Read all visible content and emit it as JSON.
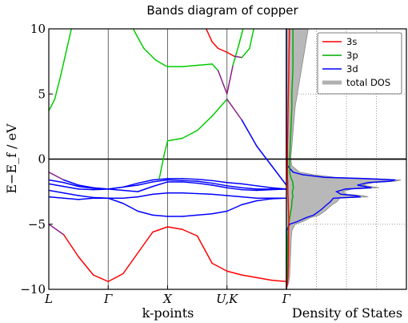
{
  "chart_data": [
    {
      "type": "line",
      "title": "Bands diagram of copper",
      "xlabel": "k-points",
      "ylabel": "E−E_f  /  eV",
      "ylim": [
        -10,
        10
      ],
      "kpoints": [
        "L",
        "Γ",
        "X",
        "U,K",
        "Γ"
      ],
      "kpoint_positions": [
        0,
        1,
        2,
        3,
        4
      ],
      "yticks": [
        -10,
        -5,
        0,
        5,
        10
      ],
      "ytick_labels": [
        "−10",
        "−5",
        "0",
        "5",
        "10"
      ],
      "fermi_level": 0,
      "grid": "vertical lines at high-symmetry k-points",
      "band_colors": {
        "s": "#ff0000",
        "p": "#00cc00",
        "d": "#0000ff"
      },
      "bands": [
        {
          "x": [
            0,
            0.25,
            0.5,
            0.75,
            1,
            1.25,
            1.5,
            1.75,
            2,
            2.25,
            2.5,
            2.75,
            3,
            3.25,
            3.5,
            3.75,
            4
          ],
          "y": [
            -5.0,
            -5.8,
            -7.5,
            -8.9,
            -9.4,
            -8.8,
            -7.2,
            -5.6,
            -5.2,
            -5.4,
            -5.9,
            -8.0,
            -8.6,
            -8.9,
            -9.1,
            -9.3,
            -9.4
          ],
          "char": [
            "p",
            "s",
            "s",
            "s",
            "s",
            "s",
            "s",
            "s",
            "s",
            "s",
            "s",
            "s",
            "s",
            "s",
            "s",
            "s",
            "s"
          ]
        },
        {
          "x": [
            0,
            0.25,
            0.5,
            0.75,
            1,
            1.25,
            1.5,
            1.75,
            2,
            2.25,
            2.5,
            2.75,
            3,
            3.25,
            3.5,
            3.75,
            4
          ],
          "y": [
            -2.9,
            -3.0,
            -3.1,
            -3.0,
            -3.0,
            -3.4,
            -4.0,
            -4.3,
            -4.4,
            -4.4,
            -4.3,
            -4.2,
            -4.0,
            -3.5,
            -3.2,
            -3.05,
            -3.0
          ],
          "char": [
            "d",
            "d",
            "d",
            "d",
            "d",
            "d",
            "d",
            "d",
            "d",
            "d",
            "d",
            "d",
            "d",
            "d",
            "d",
            "d",
            "d"
          ]
        },
        {
          "x": [
            0,
            0.25,
            0.5,
            0.75,
            1,
            1.25,
            1.5,
            1.75,
            2,
            2.25,
            2.5,
            2.75,
            3,
            3.25,
            3.5,
            3.75,
            4
          ],
          "y": [
            -2.4,
            -2.6,
            -2.8,
            -2.95,
            -3.0,
            -3.0,
            -2.9,
            -2.7,
            -2.6,
            -2.6,
            -2.65,
            -2.7,
            -2.8,
            -2.9,
            -3.0,
            -3.0,
            -3.0
          ],
          "char": [
            "d",
            "d",
            "d",
            "d",
            "d",
            "d",
            "d",
            "d",
            "d",
            "d",
            "d",
            "d",
            "d",
            "d",
            "d",
            "d",
            "d"
          ]
        },
        {
          "x": [
            0,
            0.25,
            0.5,
            0.75,
            1,
            1.25,
            1.5,
            1.75,
            2,
            2.25,
            2.5,
            2.75,
            3,
            3.25,
            3.5,
            3.75,
            4
          ],
          "y": [
            -1.9,
            -2.1,
            -2.3,
            -2.35,
            -2.3,
            -2.4,
            -2.5,
            -2.1,
            -1.75,
            -1.75,
            -1.85,
            -2.0,
            -2.2,
            -2.35,
            -2.4,
            -2.35,
            -2.3
          ],
          "char": [
            "d",
            "d",
            "d",
            "d",
            "d",
            "d",
            "d",
            "d",
            "d",
            "d",
            "d",
            "d",
            "d",
            "d",
            "d",
            "d",
            "d"
          ]
        },
        {
          "x": [
            0,
            0.25,
            0.5,
            0.75,
            1,
            1.25,
            1.5,
            1.75,
            2,
            2.25,
            2.5,
            2.75,
            3,
            3.25,
            3.5,
            3.75,
            4
          ],
          "y": [
            -1.6,
            -1.8,
            -2.1,
            -2.25,
            -2.3,
            -2.15,
            -2.0,
            -1.75,
            -1.6,
            -1.65,
            -1.7,
            -1.85,
            -2.05,
            -2.2,
            -2.3,
            -2.3,
            -2.3
          ],
          "char": [
            "d",
            "d",
            "d",
            "d",
            "d",
            "d",
            "d",
            "d",
            "d",
            "d",
            "d",
            "d",
            "d",
            "d",
            "d",
            "d",
            "d"
          ]
        },
        {
          "x": [
            0,
            0.25,
            0.5,
            0.75,
            1,
            1.25,
            1.5,
            1.75,
            2,
            2.25,
            2.5,
            2.75,
            3,
            3.25,
            3.5,
            3.75,
            4
          ],
          "y": [
            -1.0,
            -1.6,
            -2.0,
            -2.2,
            -2.3,
            -2.15,
            -1.85,
            -1.6,
            -1.5,
            -1.5,
            -1.55,
            -1.65,
            -1.8,
            -1.9,
            -2.05,
            -2.2,
            -2.3
          ],
          "char": [
            "p",
            "d",
            "d",
            "d",
            "d",
            "d",
            "d",
            "d",
            "d",
            "d",
            "d",
            "d",
            "d",
            "d",
            "d",
            "d",
            "d"
          ]
        },
        {
          "x": [
            0,
            0.1,
            0.2,
            0.3,
            0.38
          ],
          "y": [
            3.7,
            4.6,
            6.4,
            8.4,
            10.0
          ],
          "char": [
            "p",
            "p",
            "p",
            "p",
            "p"
          ]
        },
        {
          "x": [
            1.86,
            1.95,
            2.0,
            2.25,
            2.5,
            2.75,
            3,
            3.25,
            3.5,
            3.75,
            4
          ],
          "y": [
            -1.5,
            0.5,
            1.4,
            1.6,
            2.2,
            3.3,
            4.6,
            3.0,
            1.0,
            -0.5,
            -2.0
          ],
          "char": [
            "p",
            "p",
            "p",
            "p",
            "p",
            "p",
            "p",
            "d",
            "d",
            "d",
            "d"
          ]
        },
        {
          "x": [
            1.42,
            1.6,
            1.8,
            1.95,
            2.0,
            2.25,
            2.5,
            2.75,
            2.85,
            3,
            3.1,
            3.2,
            3.27
          ],
          "y": [
            10.0,
            8.5,
            7.6,
            7.2,
            7.1,
            7.1,
            7.2,
            7.3,
            6.8,
            5.0,
            7.2,
            8.8,
            10.0
          ],
          "char": [
            "p",
            "p",
            "p",
            "p",
            "p",
            "p",
            "p",
            "p",
            "p",
            "d",
            "p",
            "p",
            "p"
          ]
        },
        {
          "x": [
            2.65,
            2.75,
            2.85,
            3,
            3.12,
            3.25,
            3.38,
            3.45
          ],
          "y": [
            10.0,
            9.0,
            8.5,
            8.2,
            7.9,
            7.8,
            8.5,
            10.0
          ],
          "char": [
            "s",
            "s",
            "s",
            "s",
            "s",
            "p",
            "p",
            "p"
          ]
        }
      ]
    },
    {
      "type": "area",
      "xlabel": "Density of States",
      "legend_placement": "top-right",
      "series": [
        {
          "name": "3s",
          "color": "#ff0000"
        },
        {
          "name": "3p",
          "color": "#00aa00"
        },
        {
          "name": "3d",
          "color": "#0000ff"
        },
        {
          "name": "total DOS",
          "color": "#b0b0b0"
        }
      ],
      "e": [
        -10,
        -9.5,
        -9,
        -8,
        -7,
        -6,
        -5.5,
        -5,
        -4.8,
        -4.5,
        -4.3,
        -4.0,
        -3.8,
        -3.5,
        -3.3,
        -3.0,
        -2.9,
        -2.8,
        -2.7,
        -2.5,
        -2.3,
        -2.2,
        -2.0,
        -1.8,
        -1.7,
        -1.6,
        -1.5,
        -1.4,
        -1.2,
        -1.0,
        -0.5,
        0,
        1,
        2,
        3,
        4,
        5,
        6,
        7,
        8,
        9,
        10
      ],
      "total": [
        0,
        0.2,
        0.3,
        0.35,
        0.4,
        0.45,
        0.5,
        0.8,
        1.5,
        2.2,
        3.0,
        3.5,
        3.8,
        4.2,
        4.6,
        4.9,
        7.5,
        7.0,
        5.5,
        5.2,
        6.0,
        8.5,
        7.0,
        8.0,
        10.0,
        10.5,
        8.0,
        4.5,
        2.5,
        1.2,
        0.5,
        0.4,
        0.5,
        0.6,
        0.7,
        0.8,
        1.0,
        1.2,
        1.4,
        1.6,
        1.8,
        2.0
      ],
      "p3d": [
        0,
        0,
        0,
        0,
        0,
        0,
        0,
        0.3,
        1.0,
        1.8,
        2.5,
        3.0,
        3.3,
        3.7,
        4.0,
        4.3,
        6.8,
        6.3,
        5.0,
        4.6,
        5.4,
        7.8,
        6.5,
        7.5,
        9.5,
        10.0,
        7.3,
        3.5,
        1.5,
        0.6,
        0.1,
        0,
        0,
        0,
        0,
        0,
        0,
        0,
        0,
        0,
        0,
        0
      ],
      "p3p": [
        0,
        0.05,
        0.05,
        0.08,
        0.1,
        0.12,
        0.15,
        0.2,
        0.25,
        0.3,
        0.35,
        0.4,
        0.45,
        0.5,
        0.5,
        0.55,
        0.6,
        0.6,
        0.55,
        0.55,
        0.6,
        0.65,
        0.6,
        0.6,
        0.55,
        0.5,
        0.45,
        0.4,
        0.35,
        0.3,
        0.3,
        0.3,
        0.35,
        0.4,
        0.45,
        0.5,
        0.5,
        0.55,
        0.6,
        0.6,
        0.6,
        0.6
      ],
      "p3s": [
        0,
        0.1,
        0.15,
        0.18,
        0.2,
        0.2,
        0.2,
        0.22,
        0.22,
        0.22,
        0.2,
        0.2,
        0.18,
        0.18,
        0.17,
        0.16,
        0.15,
        0.15,
        0.14,
        0.14,
        0.13,
        0.13,
        0.12,
        0.12,
        0.12,
        0.11,
        0.1,
        0.1,
        0.1,
        0.1,
        0.1,
        0.1,
        0.1,
        0.12,
        0.14,
        0.16,
        0.18,
        0.2,
        0.22,
        0.24,
        0.26,
        0.28
      ],
      "xmax": 11
    }
  ]
}
